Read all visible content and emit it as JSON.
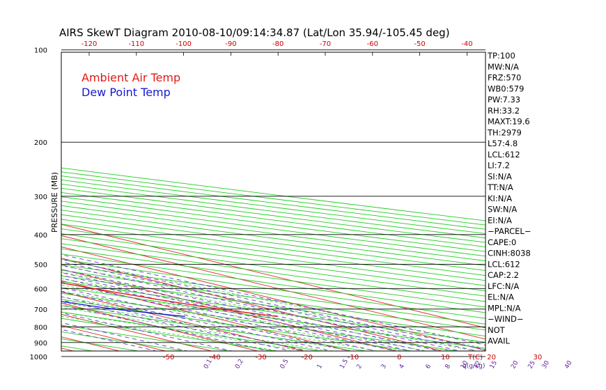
{
  "title": "AIRS SkewT Diagram 2010-08-10/09:14:34.87 (Lat/Lon 35.94/-105.45 deg)",
  "legend": [
    {
      "label": "Ambient Air Temp",
      "color": "#e01818"
    },
    {
      "label": "Dew Point Temp",
      "color": "#1818d0"
    }
  ],
  "ylabel": "PRESSURE (MB)",
  "bottom_unit_label": "T(C)",
  "mixing_unit_label": "q(g/kg)",
  "colors": {
    "isotherm": "#dd2222",
    "dry_adiabat": "#22cc22",
    "moist_adiabat": "#33cc33",
    "mixing_ratio": "#6a2ed0",
    "isobar": "#000000",
    "temperature": "#e01818",
    "dewpoint": "#1818d0"
  },
  "indices": [
    "TP:100",
    "MW:N/A",
    "FRZ:570",
    "WB0:579",
    "PW:7.33",
    "RH:33.2",
    "MAXT:19.6",
    "TH:2979",
    "L57:4.8",
    "LCL:612",
    "LI:7.2",
    "SI:N/A",
    "TT:N/A",
    "KI:N/A",
    "SW:N/A",
    "EI:N/A",
    "−PARCEL−",
    "CAPE:0",
    "CINH:8038",
    "LCL:612",
    "CAP:2.2",
    "LFC:N/A",
    "EL:N/A",
    "MPL:N/A",
    "−WIND−",
    "NOT",
    "AVAIL"
  ],
  "chart_data": {
    "type": "line",
    "title": "AIRS SkewT Diagram 2010-08-10/09:14:34.87 (Lat/Lon 35.94/-105.45 deg)",
    "ylabel": "PRESSURE (MB)",
    "pressure_levels": [
      100,
      200,
      300,
      400,
      500,
      600,
      700,
      800,
      900,
      1000
    ],
    "pressure_range": [
      100,
      1050
    ],
    "top_temperature_ticks": [
      -120,
      -110,
      -100,
      -90,
      -80,
      -70,
      -60,
      -50,
      -40
    ],
    "bottom_temperature_ticks": [
      -50,
      -40,
      -30,
      -20,
      -10,
      0,
      10,
      20,
      30
    ],
    "bottom_temperature_unit": "T(C)",
    "mixing_ratio_labels": [
      {
        "label": "0.1",
        "q": 0.1
      },
      {
        "label": "0.2",
        "q": 0.2
      },
      {
        "label": "0.5",
        "q": 0.5
      },
      {
        "label": "1",
        "q": 1
      },
      {
        "label": "1.5",
        "q": 1.5
      },
      {
        "label": "2",
        "q": 2
      },
      {
        "label": "3",
        "q": 3
      },
      {
        "label": "4",
        "q": 4
      },
      {
        "label": "6",
        "q": 6
      },
      {
        "label": "8",
        "q": 8
      },
      {
        "label": "10",
        "q": 10
      },
      {
        "label": "12",
        "q": 12
      },
      {
        "label": "15",
        "q": 15
      },
      {
        "label": "20",
        "q": 20
      },
      {
        "label": "25",
        "q": 25
      },
      {
        "label": "30",
        "q": 30
      },
      {
        "label": "40",
        "q": 40
      }
    ],
    "mixing_ratio_unit": "q(g/kg)",
    "series": [
      {
        "name": "Ambient Air Temp",
        "color": "#e01818",
        "points": [
          {
            "p": 100,
            "t": -69
          },
          {
            "p": 120,
            "t": -71
          },
          {
            "p": 150,
            "t": -76
          },
          {
            "p": 170,
            "t": -78
          },
          {
            "p": 200,
            "t": -76
          },
          {
            "p": 250,
            "t": -60
          },
          {
            "p": 300,
            "t": -47
          },
          {
            "p": 350,
            "t": -36
          },
          {
            "p": 400,
            "t": -27
          },
          {
            "p": 450,
            "t": -18
          },
          {
            "p": 500,
            "t": -9
          },
          {
            "p": 550,
            "t": -4
          },
          {
            "p": 600,
            "t": 0
          },
          {
            "p": 650,
            "t": 4
          },
          {
            "p": 700,
            "t": 9
          },
          {
            "p": 740,
            "t": 15
          }
        ]
      },
      {
        "name": "Dew Point Temp",
        "color": "#1818d0",
        "points": [
          {
            "p": 100,
            "t": -93
          },
          {
            "p": 120,
            "t": -99
          },
          {
            "p": 150,
            "t": -105
          },
          {
            "p": 200,
            "t": -113
          },
          {
            "p": 250,
            "t": -97
          },
          {
            "p": 300,
            "t": -81
          },
          {
            "p": 350,
            "t": -77
          },
          {
            "p": 400,
            "t": -71
          },
          {
            "p": 450,
            "t": -57
          },
          {
            "p": 500,
            "t": -45
          },
          {
            "p": 600,
            "t": -26
          },
          {
            "p": 650,
            "t": -20
          },
          {
            "p": 700,
            "t": -14
          },
          {
            "p": 740,
            "t": -5
          }
        ]
      }
    ],
    "grid": true
  }
}
